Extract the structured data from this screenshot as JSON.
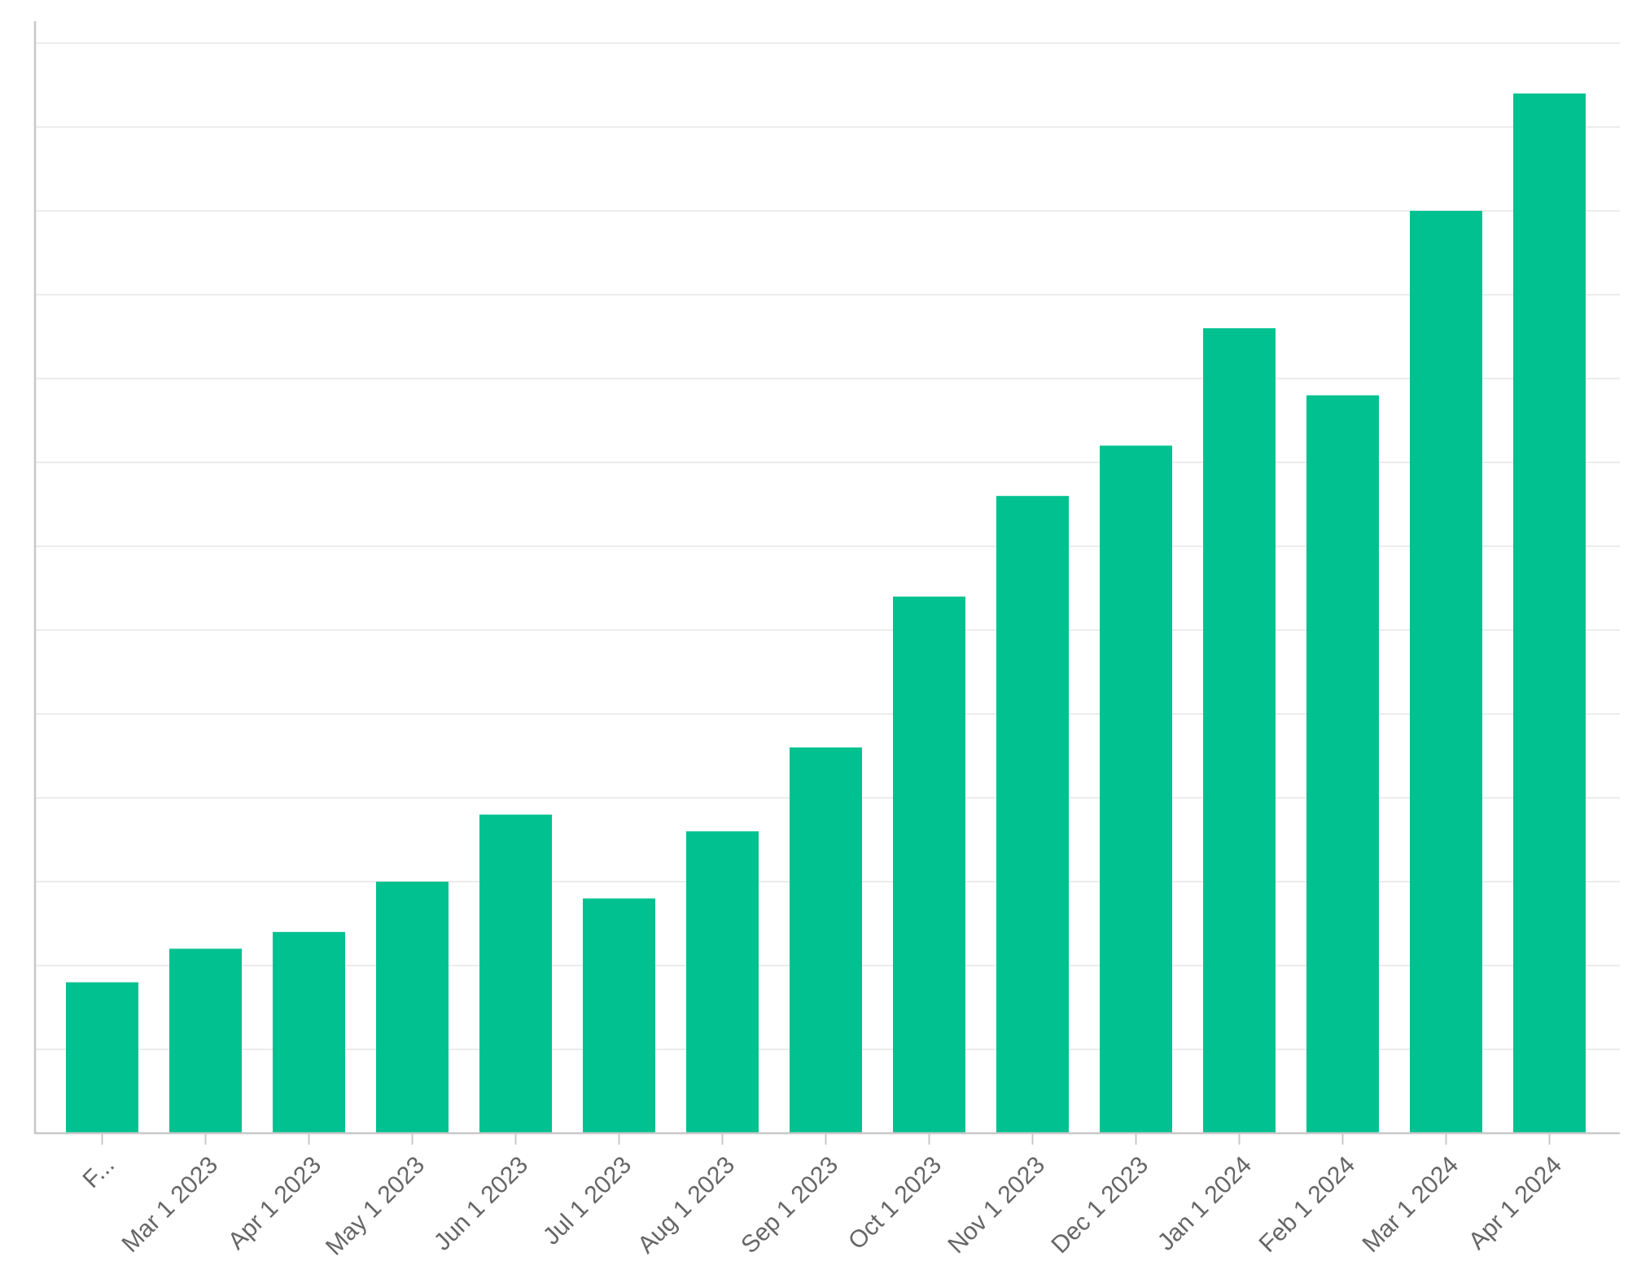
{
  "colors": {
    "bar": "#02c190",
    "gridline": "#ececec",
    "axis": "#c8c8c8",
    "tick_text": "#666666"
  },
  "chart_data": {
    "type": "bar",
    "title": "",
    "xlabel": "",
    "ylabel": "",
    "categories": [
      "F...",
      "Mar 1 2023",
      "Apr 1 2023",
      "May 1 2023",
      "Jun 1 2023",
      "Jul 1 2023",
      "Aug 1 2023",
      "Sep 1 2023",
      "Oct 1 2023",
      "Nov 1 2023",
      "Dec 1 2023",
      "Jan 1 2024",
      "Feb 1 2024",
      "Mar 1 2024",
      "Apr 1 2024"
    ],
    "values": [
      1.8,
      2.2,
      2.4,
      3.0,
      3.8,
      2.8,
      3.6,
      4.6,
      6.4,
      7.6,
      8.2,
      9.6,
      8.8,
      11.0,
      12.4
    ],
    "ylim": [
      0,
      13
    ],
    "y_gridlines": [
      1,
      2,
      3,
      4,
      5,
      6,
      7,
      8,
      9,
      10,
      11,
      12,
      13
    ],
    "y_tick_labels_shown": false,
    "grid": true,
    "legend": "none"
  }
}
